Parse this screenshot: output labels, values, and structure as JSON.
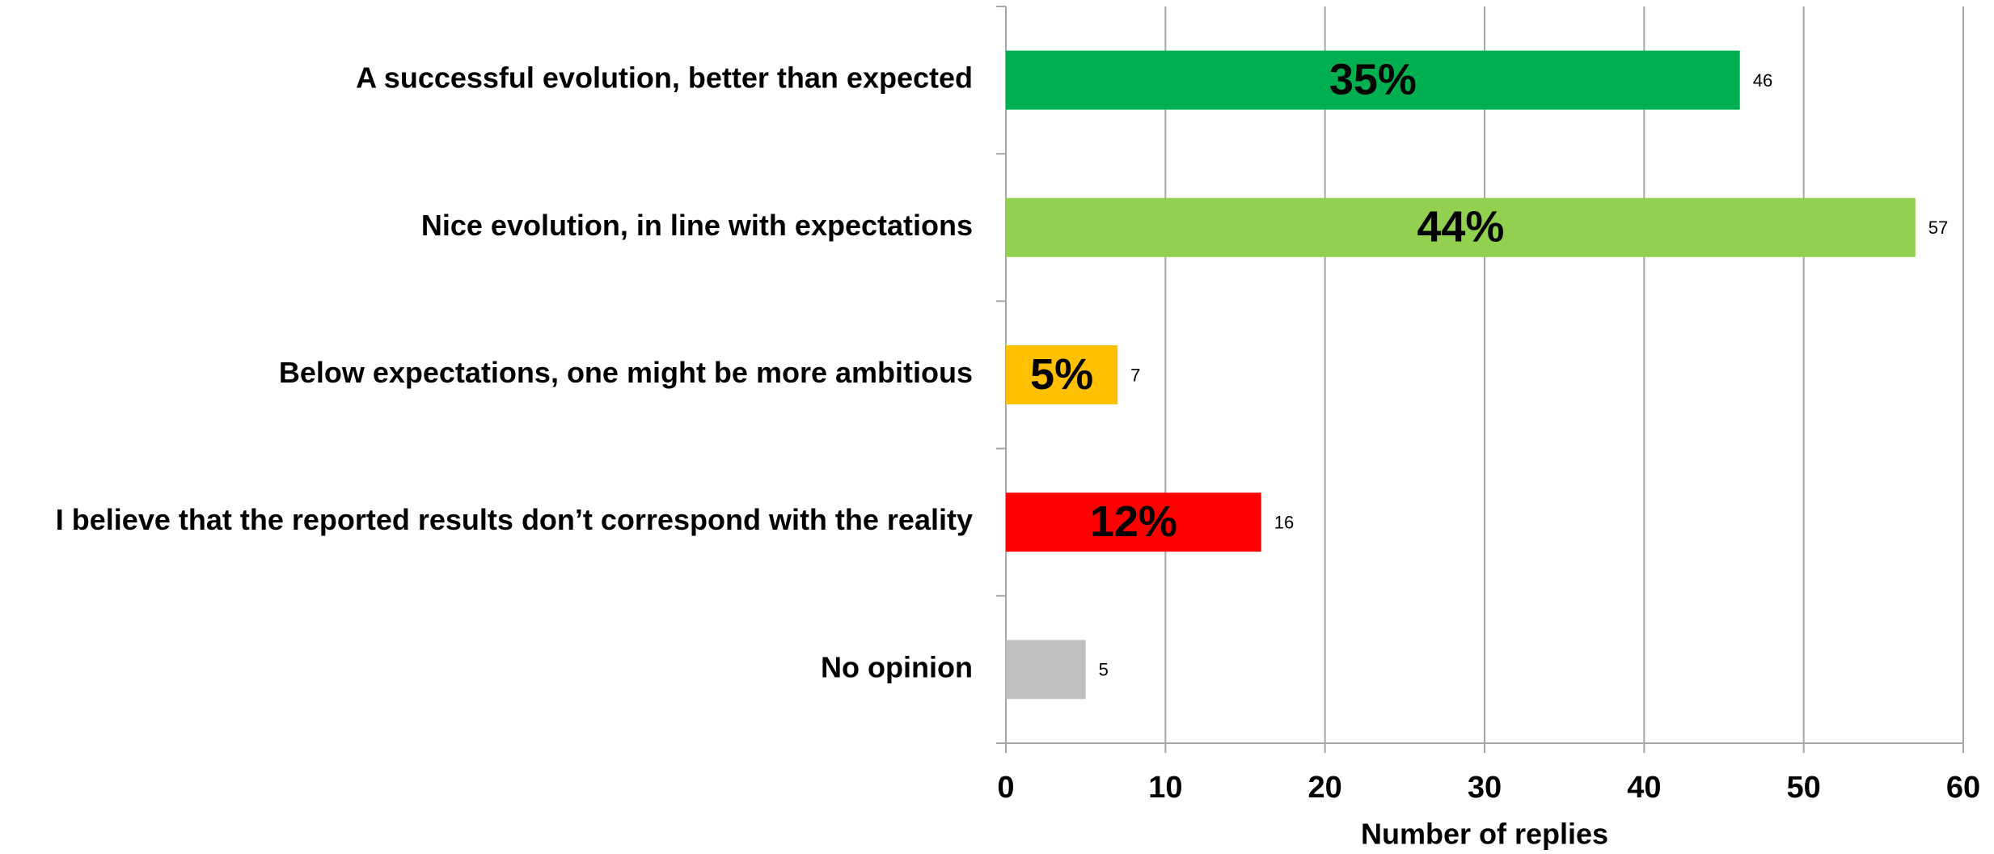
{
  "chart_data": {
    "type": "hbar",
    "categories": [
      "A successful evolution, better than expected",
      "Nice evolution, in line with expectations",
      "Below  expectations, one might be more ambitious",
      "I believe that the reported results don’t correspond with the reality",
      "No opinion"
    ],
    "values": [
      46,
      57,
      7,
      16,
      5
    ],
    "colors": [
      "#00b050",
      "#92d050",
      "#ffc000",
      "#ff0000",
      "#bfbfbf"
    ],
    "percent_values": [
      35,
      44,
      5,
      12,
      null
    ],
    "percent_labels": [
      "35%",
      "44%",
      "5%",
      "12%",
      null
    ],
    "xlim": [
      0,
      60
    ],
    "xticks": [
      0,
      10,
      20,
      30,
      40,
      50,
      60
    ],
    "x_label": "Number of replies",
    "grid": true
  }
}
